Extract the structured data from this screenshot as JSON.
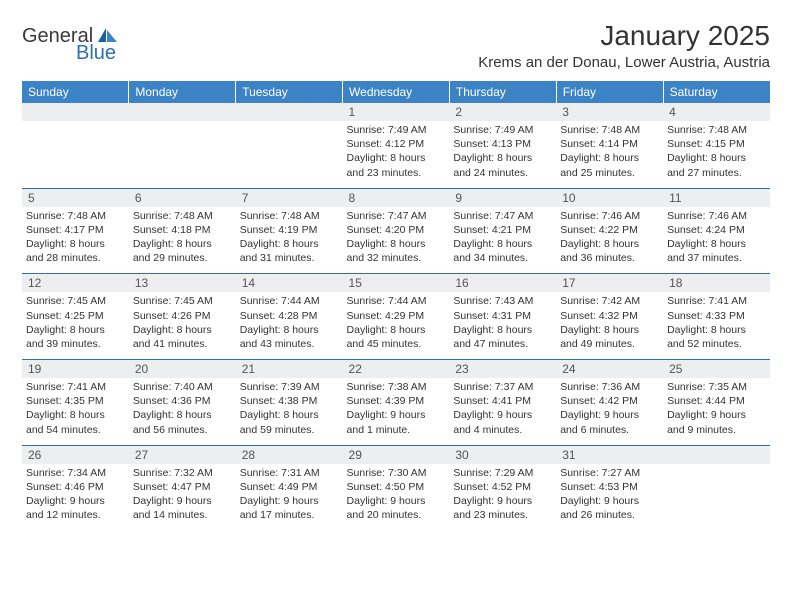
{
  "logo": {
    "general": "General",
    "blue": "Blue"
  },
  "title": {
    "month": "January 2025",
    "location": "Krems an der Donau, Lower Austria, Austria"
  },
  "dow": [
    "Sunday",
    "Monday",
    "Tuesday",
    "Wednesday",
    "Thursday",
    "Friday",
    "Saturday"
  ],
  "colors": {
    "header_bg": "#3b83c4",
    "daynum_bg": "#eceeef",
    "week_border": "#2d6fb5",
    "text": "#333333"
  },
  "weeks": [
    [
      null,
      null,
      null,
      {
        "n": "1",
        "sr": "Sunrise: 7:49 AM",
        "ss": "Sunset: 4:12 PM",
        "dl1": "Daylight: 8 hours",
        "dl2": "and 23 minutes."
      },
      {
        "n": "2",
        "sr": "Sunrise: 7:49 AM",
        "ss": "Sunset: 4:13 PM",
        "dl1": "Daylight: 8 hours",
        "dl2": "and 24 minutes."
      },
      {
        "n": "3",
        "sr": "Sunrise: 7:48 AM",
        "ss": "Sunset: 4:14 PM",
        "dl1": "Daylight: 8 hours",
        "dl2": "and 25 minutes."
      },
      {
        "n": "4",
        "sr": "Sunrise: 7:48 AM",
        "ss": "Sunset: 4:15 PM",
        "dl1": "Daylight: 8 hours",
        "dl2": "and 27 minutes."
      }
    ],
    [
      {
        "n": "5",
        "sr": "Sunrise: 7:48 AM",
        "ss": "Sunset: 4:17 PM",
        "dl1": "Daylight: 8 hours",
        "dl2": "and 28 minutes."
      },
      {
        "n": "6",
        "sr": "Sunrise: 7:48 AM",
        "ss": "Sunset: 4:18 PM",
        "dl1": "Daylight: 8 hours",
        "dl2": "and 29 minutes."
      },
      {
        "n": "7",
        "sr": "Sunrise: 7:48 AM",
        "ss": "Sunset: 4:19 PM",
        "dl1": "Daylight: 8 hours",
        "dl2": "and 31 minutes."
      },
      {
        "n": "8",
        "sr": "Sunrise: 7:47 AM",
        "ss": "Sunset: 4:20 PM",
        "dl1": "Daylight: 8 hours",
        "dl2": "and 32 minutes."
      },
      {
        "n": "9",
        "sr": "Sunrise: 7:47 AM",
        "ss": "Sunset: 4:21 PM",
        "dl1": "Daylight: 8 hours",
        "dl2": "and 34 minutes."
      },
      {
        "n": "10",
        "sr": "Sunrise: 7:46 AM",
        "ss": "Sunset: 4:22 PM",
        "dl1": "Daylight: 8 hours",
        "dl2": "and 36 minutes."
      },
      {
        "n": "11",
        "sr": "Sunrise: 7:46 AM",
        "ss": "Sunset: 4:24 PM",
        "dl1": "Daylight: 8 hours",
        "dl2": "and 37 minutes."
      }
    ],
    [
      {
        "n": "12",
        "sr": "Sunrise: 7:45 AM",
        "ss": "Sunset: 4:25 PM",
        "dl1": "Daylight: 8 hours",
        "dl2": "and 39 minutes."
      },
      {
        "n": "13",
        "sr": "Sunrise: 7:45 AM",
        "ss": "Sunset: 4:26 PM",
        "dl1": "Daylight: 8 hours",
        "dl2": "and 41 minutes."
      },
      {
        "n": "14",
        "sr": "Sunrise: 7:44 AM",
        "ss": "Sunset: 4:28 PM",
        "dl1": "Daylight: 8 hours",
        "dl2": "and 43 minutes."
      },
      {
        "n": "15",
        "sr": "Sunrise: 7:44 AM",
        "ss": "Sunset: 4:29 PM",
        "dl1": "Daylight: 8 hours",
        "dl2": "and 45 minutes."
      },
      {
        "n": "16",
        "sr": "Sunrise: 7:43 AM",
        "ss": "Sunset: 4:31 PM",
        "dl1": "Daylight: 8 hours",
        "dl2": "and 47 minutes."
      },
      {
        "n": "17",
        "sr": "Sunrise: 7:42 AM",
        "ss": "Sunset: 4:32 PM",
        "dl1": "Daylight: 8 hours",
        "dl2": "and 49 minutes."
      },
      {
        "n": "18",
        "sr": "Sunrise: 7:41 AM",
        "ss": "Sunset: 4:33 PM",
        "dl1": "Daylight: 8 hours",
        "dl2": "and 52 minutes."
      }
    ],
    [
      {
        "n": "19",
        "sr": "Sunrise: 7:41 AM",
        "ss": "Sunset: 4:35 PM",
        "dl1": "Daylight: 8 hours",
        "dl2": "and 54 minutes."
      },
      {
        "n": "20",
        "sr": "Sunrise: 7:40 AM",
        "ss": "Sunset: 4:36 PM",
        "dl1": "Daylight: 8 hours",
        "dl2": "and 56 minutes."
      },
      {
        "n": "21",
        "sr": "Sunrise: 7:39 AM",
        "ss": "Sunset: 4:38 PM",
        "dl1": "Daylight: 8 hours",
        "dl2": "and 59 minutes."
      },
      {
        "n": "22",
        "sr": "Sunrise: 7:38 AM",
        "ss": "Sunset: 4:39 PM",
        "dl1": "Daylight: 9 hours",
        "dl2": "and 1 minute."
      },
      {
        "n": "23",
        "sr": "Sunrise: 7:37 AM",
        "ss": "Sunset: 4:41 PM",
        "dl1": "Daylight: 9 hours",
        "dl2": "and 4 minutes."
      },
      {
        "n": "24",
        "sr": "Sunrise: 7:36 AM",
        "ss": "Sunset: 4:42 PM",
        "dl1": "Daylight: 9 hours",
        "dl2": "and 6 minutes."
      },
      {
        "n": "25",
        "sr": "Sunrise: 7:35 AM",
        "ss": "Sunset: 4:44 PM",
        "dl1": "Daylight: 9 hours",
        "dl2": "and 9 minutes."
      }
    ],
    [
      {
        "n": "26",
        "sr": "Sunrise: 7:34 AM",
        "ss": "Sunset: 4:46 PM",
        "dl1": "Daylight: 9 hours",
        "dl2": "and 12 minutes."
      },
      {
        "n": "27",
        "sr": "Sunrise: 7:32 AM",
        "ss": "Sunset: 4:47 PM",
        "dl1": "Daylight: 9 hours",
        "dl2": "and 14 minutes."
      },
      {
        "n": "28",
        "sr": "Sunrise: 7:31 AM",
        "ss": "Sunset: 4:49 PM",
        "dl1": "Daylight: 9 hours",
        "dl2": "and 17 minutes."
      },
      {
        "n": "29",
        "sr": "Sunrise: 7:30 AM",
        "ss": "Sunset: 4:50 PM",
        "dl1": "Daylight: 9 hours",
        "dl2": "and 20 minutes."
      },
      {
        "n": "30",
        "sr": "Sunrise: 7:29 AM",
        "ss": "Sunset: 4:52 PM",
        "dl1": "Daylight: 9 hours",
        "dl2": "and 23 minutes."
      },
      {
        "n": "31",
        "sr": "Sunrise: 7:27 AM",
        "ss": "Sunset: 4:53 PM",
        "dl1": "Daylight: 9 hours",
        "dl2": "and 26 minutes."
      },
      null
    ]
  ]
}
